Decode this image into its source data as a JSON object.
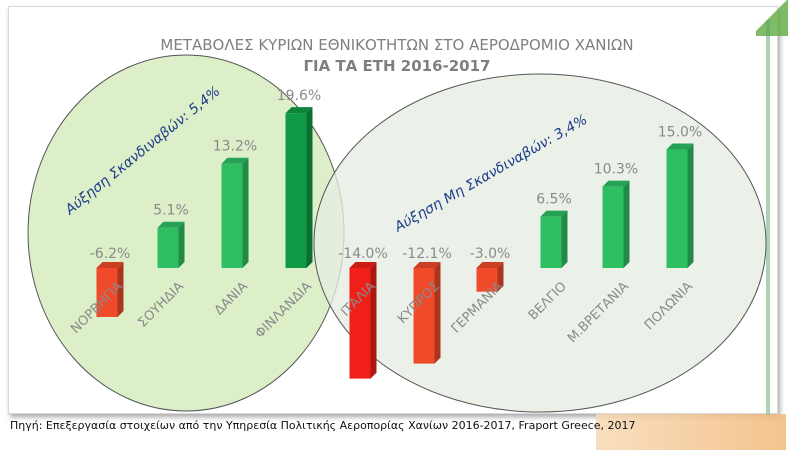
{
  "chart_data": {
    "type": "bar",
    "title_line1": "ΜΕΤΑΒΟΛΕΣ ΚΥΡΙΩΝ ΕΘΝΙΚΟΤΗΤΩΝ ΣΤΟ ΑΕΡΟΔΡΟΜΙΟ ΧΑΝΙΩΝ",
    "title_line2": "ΓΙΑ ΤΑ ΕΤΗ 2016-2017",
    "categories": [
      "ΝΟΡΒΗΓΙΑ",
      "ΣΟΥΗΔΙΑ",
      "ΔΑΝΙΑ",
      "ΦΙΝΛΑΝΔΙΑ",
      "ΙΤΑΛΙΑ",
      "ΚΥΠΡΟΣ",
      "ΓΕΡΜΑΝΙΑ",
      "ΒΕΛΓΙΟ",
      "Μ.ΒΡΕΤΑΝΙΑ",
      "ΠΟΛΩΝΙΑ"
    ],
    "values": [
      -6.2,
      5.1,
      13.2,
      19.6,
      -14.0,
      -12.1,
      -3.0,
      6.5,
      10.3,
      15.0
    ],
    "value_labels": [
      "-6.2%",
      "5.1%",
      "13.2%",
      "19.6%",
      "-14.0%",
      "-12.1%",
      "-3.0%",
      "6.5%",
      "10.3%",
      "15.0%"
    ],
    "ylim": [
      -15,
      22
    ],
    "grid": false,
    "legend": "none",
    "annotations": {
      "scandinavian": "Αύξηση Σκανδιναβών: 5,4%",
      "non_scandinavian": "Αύξηση Μη Σκανδιναβών: 3,4%"
    },
    "colors": {
      "positive": "#2ebf63",
      "positive_max": "#0f9a45",
      "negative": "#ef4a2a",
      "negative_max": "#f02018",
      "group1_ellipse": "#dcefc9",
      "group2_ellipse": "#e6ede3",
      "annotation_text": "#1f3d8a",
      "label_text": "#8a8a8a",
      "title_text": "#7f7f7f"
    }
  },
  "source": "Πηγή: Επεξεργασία στοιχείων από την Υπηρεσία Πολιτικής Αεροπορίας Χανίων 2016-2017, Fraport Greece, 2017"
}
